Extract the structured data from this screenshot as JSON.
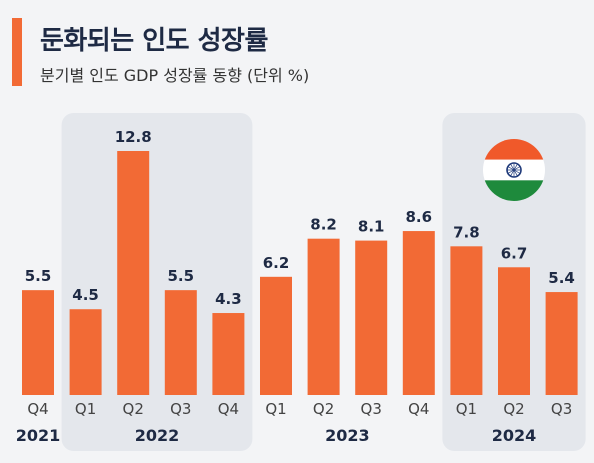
{
  "header": {
    "title": "둔화되는 인도 성장률",
    "subtitle": "분기별 인도 GDP 성장률 동향 (단위 %)"
  },
  "colors": {
    "bar": "#f26a35",
    "accent": "#f26a35",
    "highlight_band": "#e4e7ec",
    "text_dark": "#1e2a44"
  },
  "flag_icon": "india-flag-icon",
  "chart_data": {
    "type": "bar",
    "title": "둔화되는 인도 성장률",
    "subtitle": "분기별 인도 GDP 성장률 동향 (단위 %)",
    "categories": [
      "Q4",
      "Q1",
      "Q2",
      "Q3",
      "Q4",
      "Q1",
      "Q2",
      "Q3",
      "Q4",
      "Q1",
      "Q2",
      "Q3"
    ],
    "years": [
      {
        "label": "2021",
        "start": 0,
        "end": 0,
        "shaded": false
      },
      {
        "label": "2022",
        "start": 1,
        "end": 4,
        "shaded": true
      },
      {
        "label": "2023",
        "start": 5,
        "end": 8,
        "shaded": false
      },
      {
        "label": "2024",
        "start": 9,
        "end": 11,
        "shaded": true
      }
    ],
    "values": [
      5.5,
      4.5,
      12.8,
      5.5,
      4.3,
      6.2,
      8.2,
      8.1,
      8.6,
      7.8,
      6.7,
      5.4
    ],
    "value_labels": [
      "5.5",
      "4.5",
      "12.8",
      "5.5",
      "4.3",
      "6.2",
      "8.2",
      "8.1",
      "8.6",
      "7.8",
      "6.7",
      "5.4"
    ],
    "ylim": [
      0,
      12.8
    ],
    "grid": false,
    "legend": "none",
    "data_labels": true
  }
}
